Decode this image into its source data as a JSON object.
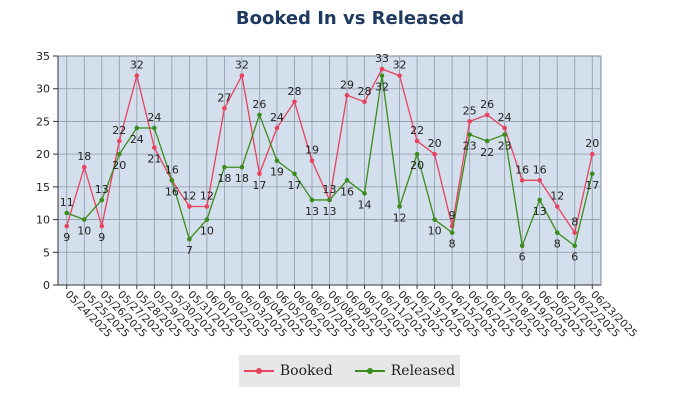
{
  "chart_data": {
    "type": "line",
    "title": "Booked In vs Released",
    "xlabel": "",
    "ylabel": "",
    "ylim": [
      0,
      35
    ],
    "y_ticks": [
      0,
      5,
      10,
      15,
      20,
      25,
      30,
      35
    ],
    "grid": true,
    "legend_position": "bottom",
    "x": [
      "05/24/2025",
      "05/25/2025",
      "05/26/2025",
      "05/27/2025",
      "05/28/2025",
      "05/29/2025",
      "05/30/2025",
      "05/31/2025",
      "06/01/2025",
      "06/02/2025",
      "06/03/2025",
      "06/04/2025",
      "06/05/2025",
      "06/06/2025",
      "06/07/2025",
      "06/08/2025",
      "06/09/2025",
      "06/10/2025",
      "06/11/2025",
      "06/12/2025",
      "06/13/2025",
      "06/14/2025",
      "06/15/2025",
      "06/16/2025",
      "06/17/2025",
      "06/18/2025",
      "06/19/2025",
      "06/20/2025",
      "06/21/2025",
      "06/22/2025",
      "06/23/2025"
    ],
    "series": [
      {
        "name": "Booked",
        "color": "#e8435e",
        "values": [
          9,
          18,
          9,
          22,
          32,
          21,
          16,
          12,
          12,
          27,
          32,
          17,
          24,
          28,
          19,
          13,
          29,
          28,
          33,
          32,
          22,
          20,
          9,
          25,
          26,
          24,
          16,
          16,
          12,
          8,
          20
        ]
      },
      {
        "name": "Released",
        "color": "#3a8c1c",
        "values": [
          11,
          10,
          13,
          20,
          24,
          24,
          16,
          7,
          10,
          18,
          18,
          26,
          19,
          17,
          13,
          13,
          16,
          14,
          32,
          12,
          20,
          10,
          8,
          23,
          22,
          23,
          6,
          13,
          8,
          6,
          17
        ]
      }
    ]
  }
}
